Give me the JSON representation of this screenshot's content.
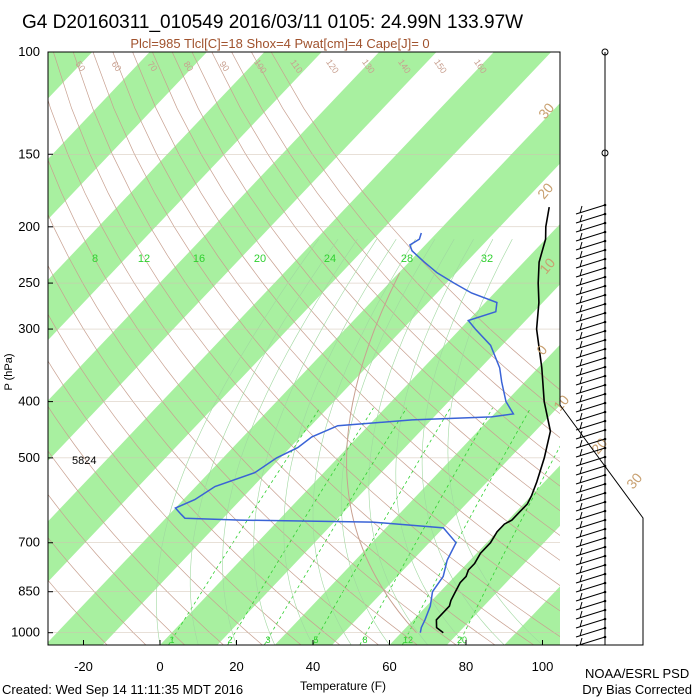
{
  "header": {
    "title": "G4 D20160311_010549 2016/03/11 0105: 24.99N 133.97W",
    "subtitle": "Plcl=985 Tlcl[C]=18 Shox=4 Pwat[cm]=4 Cape[J]= 0"
  },
  "footer": {
    "created": "Created: Wed Sep 14 11:11:35 MDT 2016",
    "org": "NOAA/ESRL PSD",
    "note": "Dry Bias Corrected"
  },
  "chart_data": {
    "type": "skew-t",
    "xlabel": "Temperature (F)",
    "ylabel": "P (hPa)",
    "x_ticks": [
      -20,
      0,
      20,
      40,
      60,
      80,
      100
    ],
    "y_ticks": [
      100,
      150,
      200,
      250,
      300,
      400,
      500,
      700,
      850,
      1000
    ],
    "y_scale": "log",
    "xlim": [
      -30,
      110
    ],
    "ylim": [
      1050,
      100
    ],
    "annotation_height": "5824",
    "isotherm_labels_f": [
      "50",
      "60",
      "70",
      "80",
      "90",
      "100",
      "110",
      "120",
      "130",
      "140",
      "150",
      "160"
    ],
    "theta_labels": [
      "30",
      "20",
      "10",
      "0",
      "10",
      "20",
      "30",
      "40"
    ],
    "mixing_ratio_labels": [
      "8",
      "12",
      "16",
      "20",
      "24",
      "28",
      "32"
    ],
    "mixing_ratio_bottom_labels": [
      "1",
      "2",
      "3",
      "5",
      "8",
      "12",
      "20"
    ],
    "temperature_f": [
      {
        "p": 1000,
        "t": 71
      },
      {
        "p": 980,
        "t": 68
      },
      {
        "p": 950,
        "t": 66
      },
      {
        "p": 920,
        "t": 66
      },
      {
        "p": 900,
        "t": 66
      },
      {
        "p": 880,
        "t": 65
      },
      {
        "p": 850,
        "t": 64
      },
      {
        "p": 820,
        "t": 63
      },
      {
        "p": 800,
        "t": 63
      },
      {
        "p": 780,
        "t": 62
      },
      {
        "p": 760,
        "t": 62
      },
      {
        "p": 730,
        "t": 61
      },
      {
        "p": 700,
        "t": 61
      },
      {
        "p": 670,
        "t": 60
      },
      {
        "p": 650,
        "t": 60
      },
      {
        "p": 640,
        "t": 61
      },
      {
        "p": 620,
        "t": 61
      },
      {
        "p": 600,
        "t": 61
      },
      {
        "p": 580,
        "t": 60
      },
      {
        "p": 550,
        "t": 58
      },
      {
        "p": 500,
        "t": 54
      },
      {
        "p": 450,
        "t": 49
      },
      {
        "p": 400,
        "t": 40
      },
      {
        "p": 350,
        "t": 31
      },
      {
        "p": 300,
        "t": 20
      },
      {
        "p": 270,
        "t": 14
      },
      {
        "p": 250,
        "t": 9
      },
      {
        "p": 230,
        "t": 4
      },
      {
        "p": 210,
        "t": 0
      },
      {
        "p": 200,
        "t": -3
      },
      {
        "p": 185,
        "t": -7
      }
    ],
    "dewpoint_f": [
      {
        "p": 1000,
        "t": 65
      },
      {
        "p": 980,
        "t": 64
      },
      {
        "p": 950,
        "t": 63
      },
      {
        "p": 900,
        "t": 61
      },
      {
        "p": 850,
        "t": 58
      },
      {
        "p": 800,
        "t": 57
      },
      {
        "p": 750,
        "t": 54
      },
      {
        "p": 700,
        "t": 52
      },
      {
        "p": 660,
        "t": 45
      },
      {
        "p": 645,
        "t": 25
      },
      {
        "p": 640,
        "t": -10
      },
      {
        "p": 635,
        "t": -25
      },
      {
        "p": 625,
        "t": -27
      },
      {
        "p": 610,
        "t": -30
      },
      {
        "p": 590,
        "t": -27
      },
      {
        "p": 560,
        "t": -25
      },
      {
        "p": 530,
        "t": -18
      },
      {
        "p": 500,
        "t": -16
      },
      {
        "p": 480,
        "t": -13
      },
      {
        "p": 460,
        "t": -12
      },
      {
        "p": 440,
        "t": -8
      },
      {
        "p": 430,
        "t": 10
      },
      {
        "p": 425,
        "t": 30
      },
      {
        "p": 420,
        "t": 35
      },
      {
        "p": 400,
        "t": 30
      },
      {
        "p": 370,
        "t": 24
      },
      {
        "p": 350,
        "t": 20
      },
      {
        "p": 320,
        "t": 12
      },
      {
        "p": 300,
        "t": 4
      },
      {
        "p": 290,
        "t": 0
      },
      {
        "p": 280,
        "t": 5
      },
      {
        "p": 270,
        "t": 3
      },
      {
        "p": 260,
        "t": -6
      },
      {
        "p": 250,
        "t": -13
      },
      {
        "p": 240,
        "t": -20
      },
      {
        "p": 230,
        "t": -26
      },
      {
        "p": 220,
        "t": -32
      },
      {
        "p": 215,
        "t": -34
      },
      {
        "p": 210,
        "t": -33
      },
      {
        "p": 205,
        "t": -34
      }
    ],
    "colors": {
      "temperature": "#000000",
      "dewpoint": "#3a63d6",
      "bands": "#a8f0a0",
      "dry_adiabat": "#c8a090",
      "moist_adiabat": "#a0d8a0",
      "mixing_ratio": "#30d030",
      "theta_label": "#c8a070",
      "barbs": "#000000"
    }
  }
}
